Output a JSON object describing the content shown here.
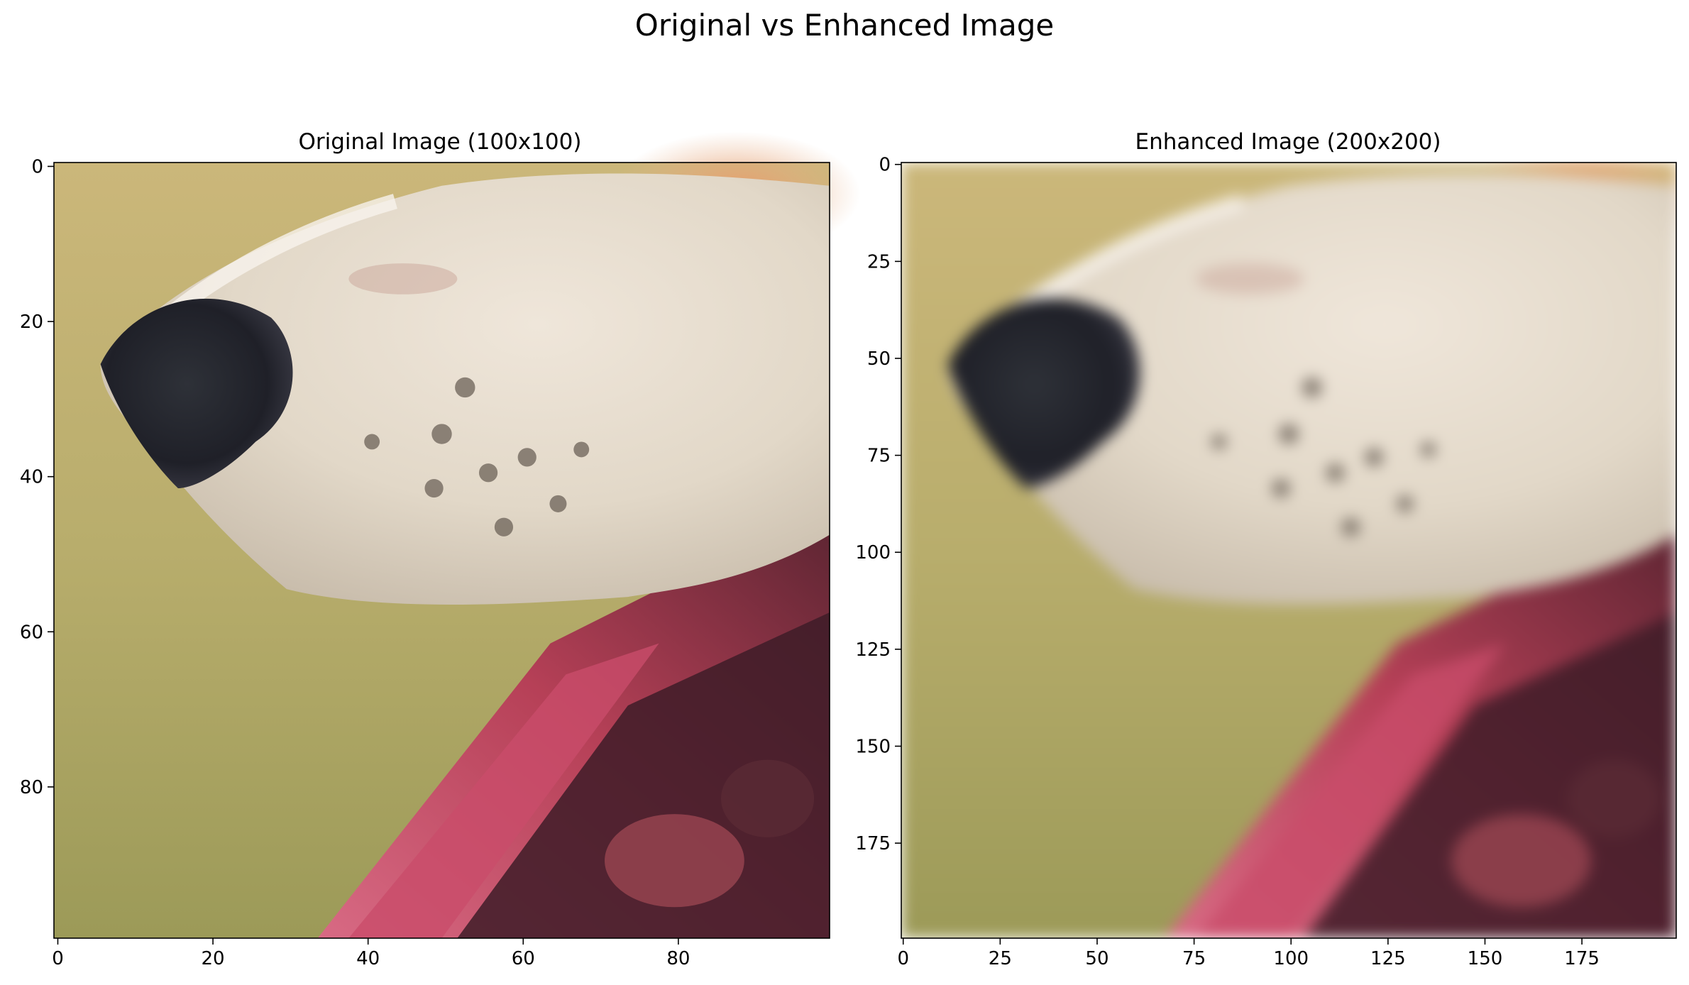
{
  "figure": {
    "title": "Original vs Enhanced Image"
  },
  "panels": [
    {
      "title": "Original Image (100x100)",
      "xticks": [
        "0",
        "20",
        "40",
        "60",
        "80"
      ],
      "yticks": [
        "0",
        "20",
        "40",
        "60",
        "80"
      ]
    },
    {
      "title": "Enhanced Image (200x200)",
      "xticks": [
        "0",
        "25",
        "50",
        "75",
        "100",
        "125",
        "150",
        "175"
      ],
      "yticks": [
        "0",
        "25",
        "50",
        "75",
        "100",
        "125",
        "150",
        "175"
      ]
    }
  ],
  "image": {
    "subject": "close-up of a dog's muzzle and nose with a red collar",
    "colors": {
      "background": "#b3a96a",
      "fur": "#e6ddcf",
      "nose": "#2a2a33",
      "collar": "#c0455e",
      "collar_dark": "#4a2230",
      "top_right": "#e8a77a"
    }
  }
}
